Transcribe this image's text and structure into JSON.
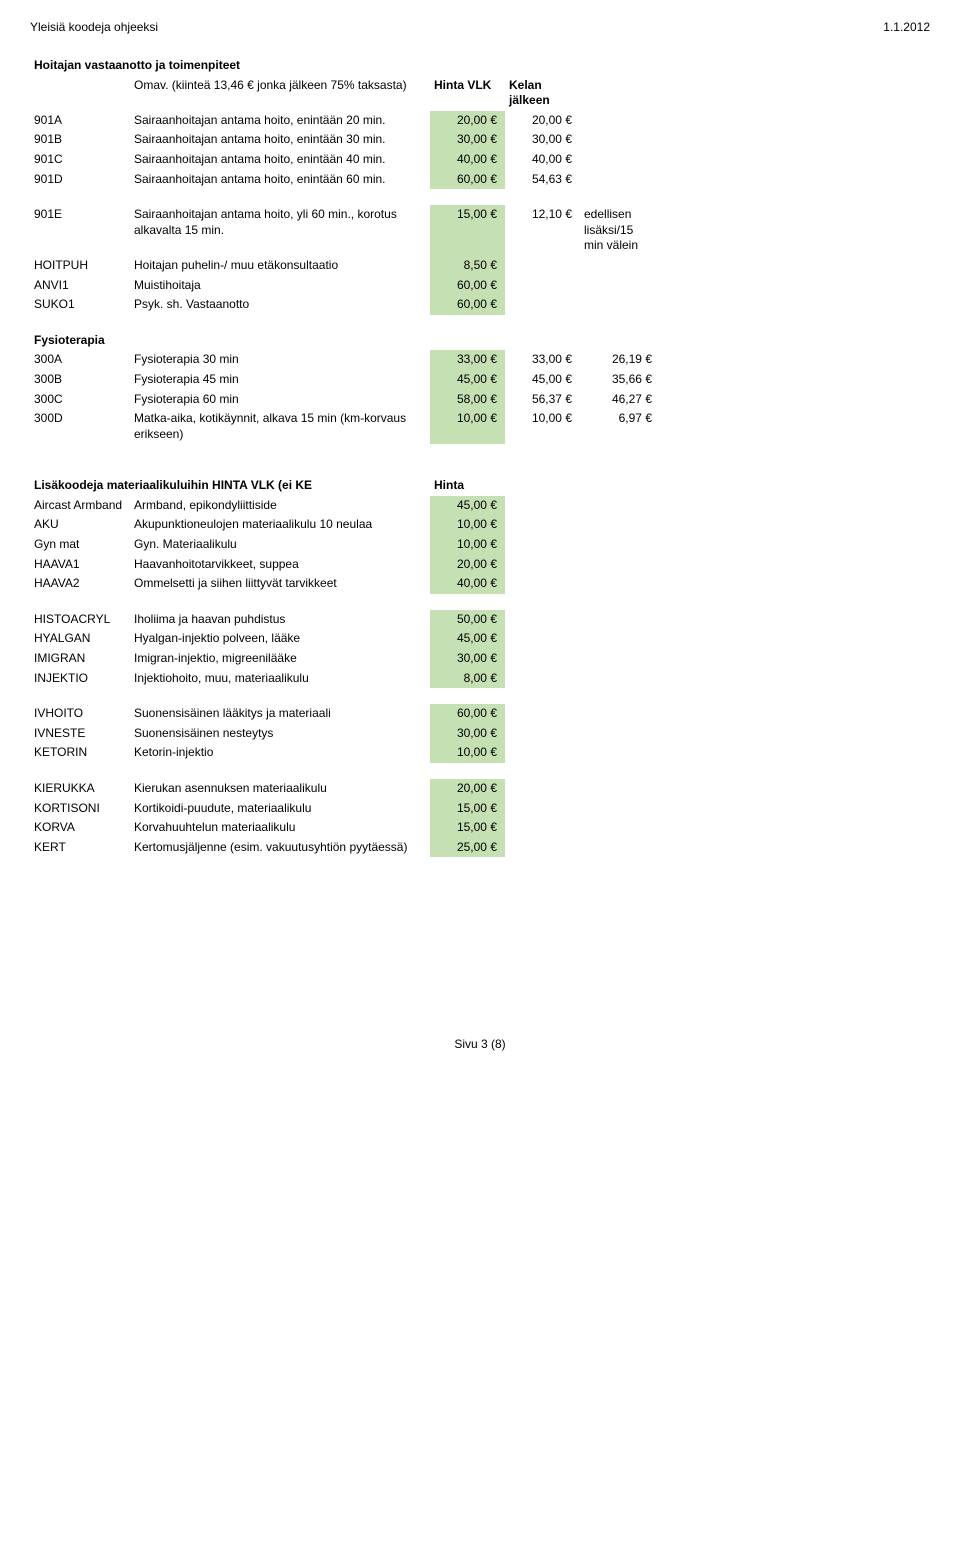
{
  "header": {
    "left": "Yleisiä koodeja ohjeeksi",
    "right": "1.1.2012"
  },
  "colors": {
    "highlight": "#c5e0b3"
  },
  "section1": {
    "title": "Hoitajan vastaanotto ja toimenpiteet",
    "subtitle_left": "Omav. (kiinteä 13,46 € jonka jälkeen 75% taksasta)",
    "subtitle_c1": "Hinta VLK",
    "subtitle_c2": "Kelan jälkeen",
    "rows": [
      {
        "code": "901A",
        "desc": "Sairaanhoitajan antama hoito, enintään 20 min.",
        "c1": "20,00 €",
        "c2": "20,00 €",
        "c3": ""
      },
      {
        "code": "901B",
        "desc": "Sairaanhoitajan antama hoito, enintään 30 min.",
        "c1": "30,00 €",
        "c2": "30,00 €",
        "c3": ""
      },
      {
        "code": "901C",
        "desc": "Sairaanhoitajan antama hoito, enintään 40 min.",
        "c1": "40,00 €",
        "c2": "40,00 €",
        "c3": ""
      },
      {
        "code": "901D",
        "desc": "Sairaanhoitajan antama hoito, enintään 60 min.",
        "c1": "60,00 €",
        "c2": "54,63 €",
        "c3": ""
      }
    ],
    "rows2": [
      {
        "code": "901E",
        "desc": "Sairaanhoitajan antama hoito, yli 60 min., korotus alkavalta 15 min.",
        "c1": "15,00 €",
        "c2": "12,10 €",
        "c3": "edellisen lisäksi/15 min välein"
      },
      {
        "code": "HOITPUH",
        "desc": "Hoitajan puhelin-/ muu etäkonsultaatio",
        "c1": "8,50 €",
        "c2": "",
        "c3": ""
      },
      {
        "code": "ANVI1",
        "desc": "Muistihoitaja",
        "c1": "60,00 €",
        "c2": "",
        "c3": ""
      },
      {
        "code": "SUKO1",
        "desc": "Psyk. sh. Vastaanotto",
        "c1": "60,00 €",
        "c2": "",
        "c3": ""
      }
    ]
  },
  "section2": {
    "title": "Fysioterapia",
    "rows": [
      {
        "code": "300A",
        "desc": "Fysioterapia 30 min",
        "c1": "33,00 €",
        "c2": "33,00 €",
        "c3": "26,19 €"
      },
      {
        "code": "300B",
        "desc": "Fysioterapia 45 min",
        "c1": "45,00 €",
        "c2": "45,00 €",
        "c3": "35,66 €"
      },
      {
        "code": "300C",
        "desc": "Fysioterapia 60 min",
        "c1": "58,00 €",
        "c2": "56,37 €",
        "c3": "46,27 €"
      },
      {
        "code": "300D",
        "desc": "Matka-aika, kotikäynnit, alkava 15 min (km-korvaus erikseen)",
        "c1": "10,00 €",
        "c2": "10,00 €",
        "c3": "6,97 €"
      }
    ]
  },
  "section3": {
    "title_left": "Lisäkoodeja materiaalikuluihin HINTA VLK (ei KE",
    "title_right": "Hinta",
    "groups": [
      [
        {
          "code": "Aircast Armband",
          "desc": "Armband, epikondyliittiside",
          "c1": "45,00 €"
        },
        {
          "code": "AKU",
          "desc": "Akupunktioneulojen materiaalikulu 10 neulaa",
          "c1": "10,00 €"
        },
        {
          "code": "Gyn mat",
          "desc": "Gyn. Materiaalikulu",
          "c1": "10,00 €"
        },
        {
          "code": "HAAVA1",
          "desc": "Haavanhoitotarvikkeet, suppea",
          "c1": "20,00 €"
        },
        {
          "code": "HAAVA2",
          "desc": "Ommelsetti ja siihen liittyvät tarvikkeet",
          "c1": "40,00 €"
        }
      ],
      [
        {
          "code": "HISTOACRYL",
          "desc": "Iholiima ja haavan puhdistus",
          "c1": "50,00 €"
        },
        {
          "code": "HYALGAN",
          "desc": "Hyalgan-injektio polveen, lääke",
          "c1": "45,00 €"
        },
        {
          "code": "IMIGRAN",
          "desc": "Imigran-injektio, migreenilääke",
          "c1": "30,00 €"
        },
        {
          "code": "INJEKTIO",
          "desc": "Injektiohoito, muu, materiaalikulu",
          "c1": "8,00 €"
        }
      ],
      [
        {
          "code": "IVHOITO",
          "desc": "Suonensisäinen lääkitys ja materiaali",
          "c1": "60,00 €"
        },
        {
          "code": "IVNESTE",
          "desc": "Suonensisäinen nesteytys",
          "c1": "30,00 €"
        },
        {
          "code": "KETORIN",
          "desc": "Ketorin-injektio",
          "c1": "10,00 €"
        }
      ],
      [
        {
          "code": "KIERUKKA",
          "desc": "Kierukan asennuksen materiaalikulu",
          "c1": "20,00 €"
        },
        {
          "code": "KORTISONI",
          "desc": "Kortikoidi-puudute, materiaalikulu",
          "c1": "15,00 €"
        },
        {
          "code": "KORVA",
          "desc": "Korvahuuhtelun materiaalikulu",
          "c1": "15,00 €"
        },
        {
          "code": "KERT",
          "desc": "Kertomusjäljenne (esim. vakuutusyhtiön pyytäessä)",
          "c1": "25,00 €"
        }
      ]
    ]
  },
  "footer": "Sivu 3 (8)"
}
